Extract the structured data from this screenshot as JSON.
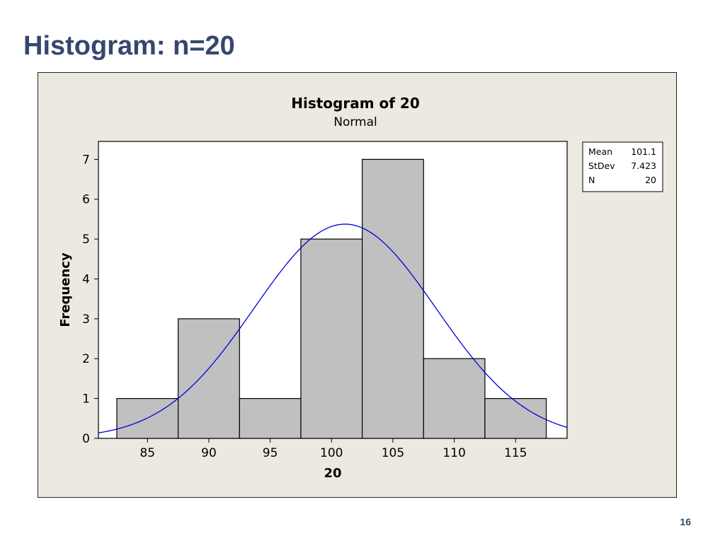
{
  "slide": {
    "title": "Histogram: n=20",
    "page_number": "16"
  },
  "colors": {
    "title": "#34486e",
    "frame_background": "#ece9e0",
    "bar_fill": "#c0c0c0",
    "curve": "#0000dd"
  },
  "chart_data": {
    "type": "bar",
    "title": "Histogram of 20",
    "subtitle": "Normal",
    "xlabel": "20",
    "ylabel": "Frequency",
    "bins": [
      {
        "start": 82.5,
        "end": 87.5,
        "count": 1
      },
      {
        "start": 87.5,
        "end": 92.5,
        "count": 3
      },
      {
        "start": 92.5,
        "end": 97.5,
        "count": 1
      },
      {
        "start": 97.5,
        "end": 102.5,
        "count": 5
      },
      {
        "start": 102.5,
        "end": 107.5,
        "count": 7
      },
      {
        "start": 107.5,
        "end": 112.5,
        "count": 2
      },
      {
        "start": 112.5,
        "end": 117.5,
        "count": 1
      }
    ],
    "xlim": [
      81.0,
      119.2
    ],
    "ylim": [
      0,
      7.45
    ],
    "xticks": [
      85,
      90,
      95,
      100,
      105,
      110,
      115
    ],
    "yticks": [
      0,
      1,
      2,
      3,
      4,
      5,
      6,
      7
    ],
    "fit": {
      "type": "normal",
      "mean": 101.1,
      "stdev": 7.423,
      "n": 20,
      "bin_width": 5
    },
    "stats": [
      {
        "label": "Mean",
        "value": "101.1"
      },
      {
        "label": "StDev",
        "value": "7.423"
      },
      {
        "label": "N",
        "value": "20"
      }
    ],
    "legend_position": "top-right",
    "grid": false
  }
}
